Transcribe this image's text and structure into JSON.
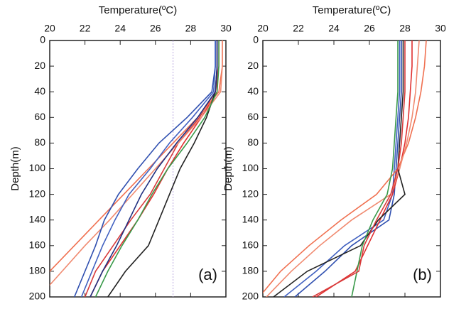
{
  "chart_data": [
    {
      "type": "line",
      "xlabel": "Temperature(ºC)",
      "ylabel": "Depth(m)",
      "label": "(a)",
      "xlim": [
        20,
        30
      ],
      "xticks": [
        20,
        22,
        24,
        26,
        28,
        30
      ],
      "ylim": [
        0,
        200
      ],
      "yticks": [
        0,
        20,
        40,
        60,
        80,
        100,
        120,
        140,
        160,
        180,
        200
      ],
      "y_inverted": true,
      "reference_x": 27,
      "reference_color": "#b9a8e0",
      "y": [
        0,
        20,
        40,
        60,
        80,
        100,
        120,
        140,
        160,
        180,
        200
      ],
      "series": [
        {
          "color": "#e03030",
          "values": [
            29.5,
            29.5,
            29.5,
            28.6,
            27.6,
            26.7,
            25.9,
            25.0,
            24.0,
            23.0,
            22.3
          ]
        },
        {
          "color": "#d83a3a",
          "values": [
            29.6,
            29.6,
            29.4,
            28.5,
            27.3,
            26.5,
            25.7,
            24.6,
            23.6,
            22.6,
            22.0
          ]
        },
        {
          "color": "#f07050",
          "values": [
            29.8,
            29.8,
            29.6,
            28.4,
            27.0,
            25.6,
            24.2,
            22.8,
            21.4,
            20.0,
            18.6
          ]
        },
        {
          "color": "#f08a70",
          "values": [
            29.8,
            29.8,
            29.7,
            28.6,
            27.3,
            26.0,
            24.7,
            23.4,
            22.0,
            20.7,
            19.4
          ]
        },
        {
          "color": "#3050b0",
          "values": [
            29.4,
            29.4,
            29.2,
            27.8,
            26.2,
            25.0,
            23.9,
            23.1,
            22.6,
            22.0,
            21.4
          ]
        },
        {
          "color": "#4060c0",
          "values": [
            29.4,
            29.4,
            29.3,
            28.1,
            26.8,
            25.7,
            24.5,
            23.7,
            23.0,
            22.4,
            21.8
          ]
        },
        {
          "color": "#222222",
          "values": [
            29.5,
            29.5,
            29.4,
            28.9,
            28.2,
            27.4,
            26.8,
            26.2,
            25.6,
            24.3,
            23.3
          ]
        },
        {
          "color": "#3a9a4a",
          "values": [
            29.6,
            29.6,
            29.5,
            28.8,
            27.8,
            26.7,
            25.8,
            25.0,
            24.1,
            23.3,
            22.6
          ]
        },
        {
          "color": "#203080",
          "values": [
            29.5,
            29.5,
            29.4,
            28.4,
            27.2,
            26.1,
            25.2,
            24.5,
            23.8,
            23.0,
            22.3
          ]
        }
      ]
    },
    {
      "type": "line",
      "xlabel": "Temperature(ºC)",
      "ylabel": "Depth(m)",
      "label": "(b)",
      "xlim": [
        20,
        30
      ],
      "xticks": [
        20,
        22,
        24,
        26,
        28,
        30
      ],
      "ylim": [
        0,
        200
      ],
      "yticks": [
        0,
        20,
        40,
        60,
        80,
        100,
        120,
        140,
        160,
        180,
        200
      ],
      "y_inverted": true,
      "y": [
        0,
        20,
        40,
        60,
        80,
        100,
        120,
        140,
        160,
        180,
        200
      ],
      "series": [
        {
          "color": "#3050b0",
          "values": [
            27.8,
            27.8,
            27.8,
            27.7,
            27.6,
            27.5,
            27.4,
            27.1,
            25.0,
            23.5,
            21.8
          ]
        },
        {
          "color": "#4060c0",
          "values": [
            27.7,
            27.7,
            27.7,
            27.6,
            27.5,
            27.4,
            27.3,
            26.8,
            24.6,
            23.0,
            21.2
          ]
        },
        {
          "color": "#e03030",
          "values": [
            28.4,
            28.4,
            28.3,
            28.2,
            28.0,
            27.7,
            27.3,
            26.6,
            25.9,
            25.2,
            23.0
          ]
        },
        {
          "color": "#f07050",
          "values": [
            29.2,
            29.1,
            28.9,
            28.6,
            28.2,
            27.6,
            26.4,
            24.4,
            22.6,
            21.0,
            19.8
          ]
        },
        {
          "color": "#f08a70",
          "values": [
            28.8,
            28.7,
            28.6,
            28.4,
            28.1,
            27.7,
            27.2,
            25.0,
            23.2,
            21.6,
            20.2
          ]
        },
        {
          "color": "#222222",
          "values": [
            27.9,
            27.9,
            27.9,
            27.8,
            27.7,
            27.6,
            28.0,
            26.5,
            25.5,
            22.5,
            20.6
          ]
        },
        {
          "color": "#3a9a4a",
          "values": [
            27.6,
            27.6,
            27.6,
            27.5,
            27.4,
            27.3,
            27.0,
            26.2,
            25.6,
            25.3,
            25.0
          ]
        },
        {
          "color": "#d83a3a",
          "values": [
            28.0,
            28.0,
            28.0,
            27.9,
            27.8,
            27.6,
            27.2,
            26.4,
            25.7,
            25.4,
            22.8
          ]
        }
      ]
    }
  ]
}
